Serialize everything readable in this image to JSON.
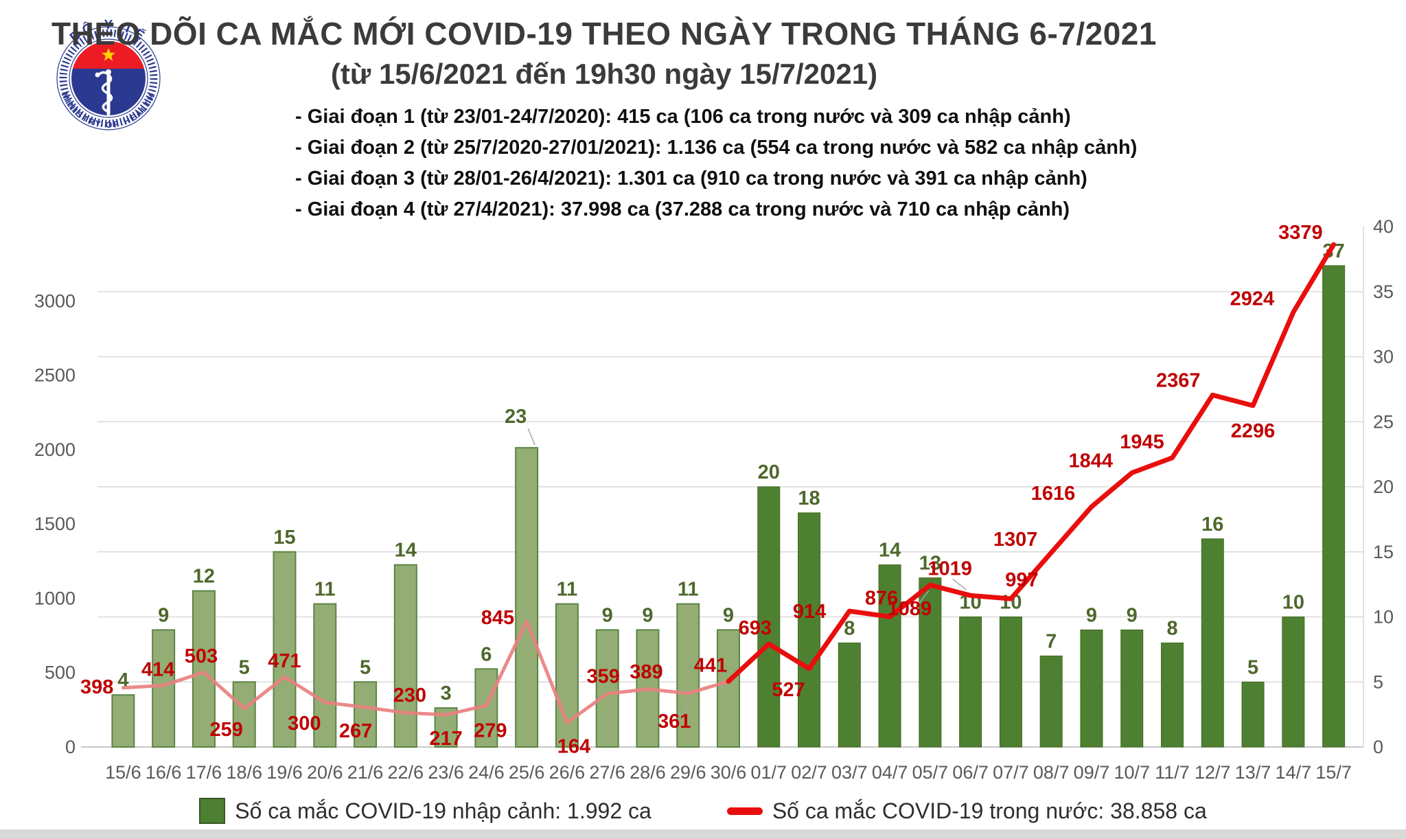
{
  "title": "THEO DÕI CA MẮC MỚI COVID-19 THEO NGÀY TRONG THÁNG 6-7/2021",
  "subtitle": "(từ 15/6/2021 đến 19h30 ngày 15/7/2021)",
  "annotations": [
    "- Giai đoạn 1 (từ 23/01-24/7/2020): 415 ca (106 ca trong nước và 309 ca nhập cảnh)",
    "- Giai đoạn 2 (từ 25/7/2020-27/01/2021): 1.136 ca (554 ca trong nước và 582 ca nhập cảnh)",
    "- Giai đoạn 3 (từ 28/01-26/4/2021): 1.301 ca (910 ca trong nước và 391 ca nhập cảnh)",
    "- Giai đoạn 4 (từ 27/4/2021): 37.998 ca (37.288 ca trong nước và 710 ca nhập cảnh)"
  ],
  "logo": {
    "top_text": "BỘ Y TẾ",
    "bottom_text": "MINISTRY OF HEALTH"
  },
  "legend": {
    "items": [
      {
        "label": "Số ca mắc COVID-19 nhập cảnh: 1.992 ca",
        "swatch": "square",
        "color": "#4e8032"
      },
      {
        "label": "Số ca mắc COVID-19 trong nước: 38.858 ca",
        "swatch": "line",
        "color": "#e90e0e"
      }
    ]
  },
  "axes": {
    "left_ticks": [
      0,
      500,
      1000,
      1500,
      2000,
      2500,
      3000
    ],
    "right_ticks": [
      0,
      5,
      10,
      15,
      20,
      25,
      30,
      35,
      40
    ]
  },
  "chart_data": [
    {
      "type": "bar",
      "name": "Số ca mắc COVID-19 nhập cảnh",
      "axis": "right",
      "ylim": [
        0,
        40
      ],
      "xlabel": "",
      "ylabel": "",
      "categories": [
        "15/6",
        "16/6",
        "17/6",
        "18/6",
        "19/6",
        "20/6",
        "21/6",
        "22/6",
        "23/6",
        "24/6",
        "25/6",
        "26/6",
        "27/6",
        "28/6",
        "29/6",
        "30/6",
        "01/7",
        "02/7",
        "03/7",
        "04/7",
        "05/7",
        "06/7",
        "07/7",
        "08/7",
        "09/7",
        "10/7",
        "11/7",
        "12/7",
        "13/7",
        "14/7",
        "15/7"
      ],
      "values": [
        4,
        9,
        12,
        5,
        15,
        11,
        5,
        14,
        3,
        6,
        23,
        11,
        9,
        9,
        11,
        9,
        20,
        18,
        8,
        14,
        13,
        10,
        10,
        7,
        9,
        9,
        8,
        16,
        5,
        10,
        37
      ]
    },
    {
      "type": "line",
      "name": "Số ca mắc COVID-19 trong nước",
      "axis": "left",
      "ylim": [
        0,
        3500
      ],
      "xlabel": "",
      "ylabel": "",
      "categories": [
        "15/6",
        "16/6",
        "17/6",
        "18/6",
        "19/6",
        "20/6",
        "21/6",
        "22/6",
        "23/6",
        "24/6",
        "25/6",
        "26/6",
        "27/6",
        "28/6",
        "29/6",
        "30/6",
        "01/7",
        "02/7",
        "03/7",
        "04/7",
        "05/7",
        "06/7",
        "07/7",
        "08/7",
        "09/7",
        "10/7",
        "11/7",
        "12/7",
        "13/7",
        "14/7",
        "15/7"
      ],
      "values": [
        398,
        414,
        503,
        259,
        471,
        300,
        267,
        230,
        217,
        279,
        845,
        164,
        359,
        389,
        361,
        441,
        693,
        527,
        914,
        876,
        1089,
        1019,
        997,
        1307,
        1616,
        1844,
        1945,
        2367,
        2296,
        2924,
        3379
      ],
      "color_split_index": 16
    }
  ],
  "colors": {
    "title_text": "#3b3b3b",
    "annotation_text": "#101010",
    "bar_june_fill": "#93ad74",
    "bar_june_border": "#5a8544",
    "bar_july_fill": "#4e8032",
    "bar_july_border": "#41691f",
    "bar_label": "#4e682c",
    "line_june": "#e98080",
    "line_july": "#e90e0e",
    "line_label": "#c00000",
    "grid": "#d9d9d9",
    "baseline": "#c9c9c9",
    "axis_text": "#595959",
    "leader": "#a6a6a6",
    "logo_blue": "#2b3990",
    "logo_red": "#ed1c24",
    "logo_star": "#ffd200"
  }
}
